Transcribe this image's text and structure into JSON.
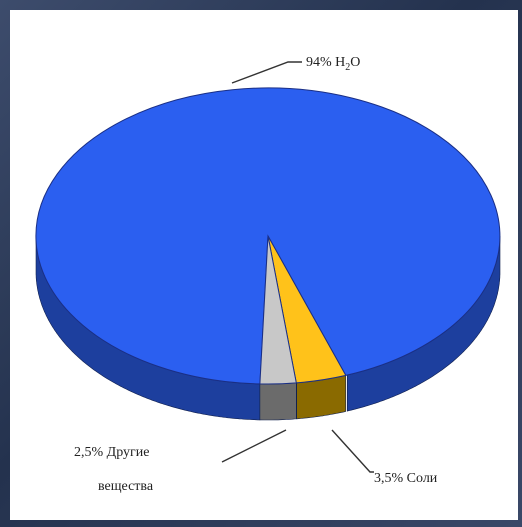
{
  "chart_data": {
    "type": "pie",
    "style": "3d",
    "slices": [
      {
        "label": "H₂O",
        "value": 94,
        "label_text": "94% H",
        "label_sub": "2",
        "label_tail": "O",
        "color": "#2b5ff0",
        "side_color": "#1d3f9e"
      },
      {
        "label": "Соли",
        "value": 3.5,
        "label_text": "3,5% Соли",
        "color": "#ffc21a",
        "side_color": "#8a6a00"
      },
      {
        "label": "Другие вещества",
        "value": 2.5,
        "label_line1": "2,5%  Другие",
        "label_line2": "вещества",
        "color": "#c8c8c8",
        "side_color": "#6b6b6b"
      }
    ],
    "legend": "none"
  },
  "colors": {
    "background": "#2a3858",
    "panel": "#ffffff",
    "rim": "#1a2f86"
  }
}
